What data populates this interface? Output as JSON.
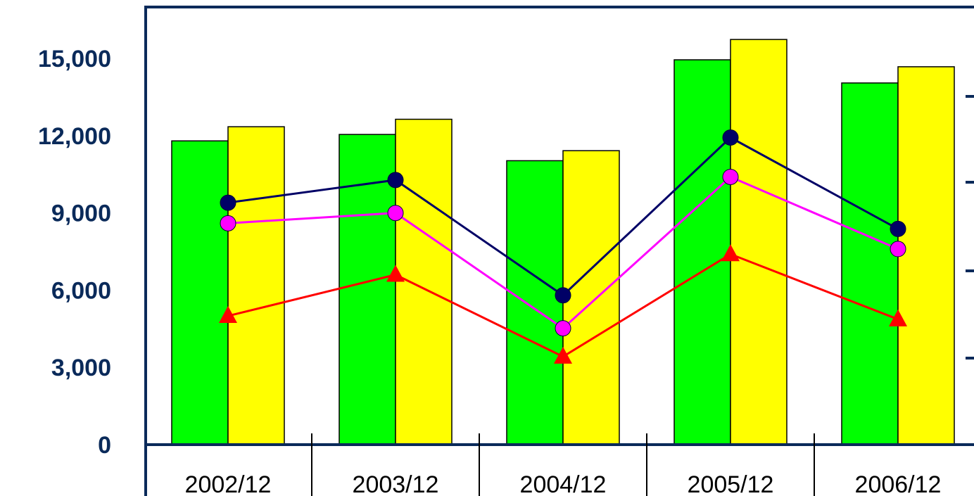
{
  "chart_data": {
    "type": "bar",
    "categories": [
      "2002/12",
      "2003/12",
      "2004/12",
      "2005/12",
      "2006/12"
    ],
    "ylim": [
      0,
      17000
    ],
    "yticks": [
      0,
      3000,
      6000,
      9000,
      12000,
      15000
    ],
    "ytick_labels": [
      "0",
      "3,000",
      "6,000",
      "9,000",
      "12,000",
      "15,000"
    ],
    "bar_series": [
      {
        "color": "#00ff00",
        "values": [
          11800,
          12050,
          11030,
          14950,
          14050
        ]
      },
      {
        "color": "#ffff00",
        "values": [
          12350,
          12640,
          11420,
          15740,
          14680
        ]
      }
    ],
    "line_series": [
      {
        "color": "#000066",
        "marker": "circle",
        "values": [
          9400,
          10280,
          5800,
          11930,
          8380
        ]
      },
      {
        "color": "#ff00ff",
        "marker": "circle",
        "values": [
          8600,
          9000,
          4520,
          10400,
          7600
        ]
      },
      {
        "color": "#ff0000",
        "marker": "triangle",
        "values": [
          5000,
          6600,
          3420,
          7400,
          4870
        ]
      }
    ],
    "axis_color": "#0a2a5a",
    "grid": false,
    "legend": "none"
  }
}
